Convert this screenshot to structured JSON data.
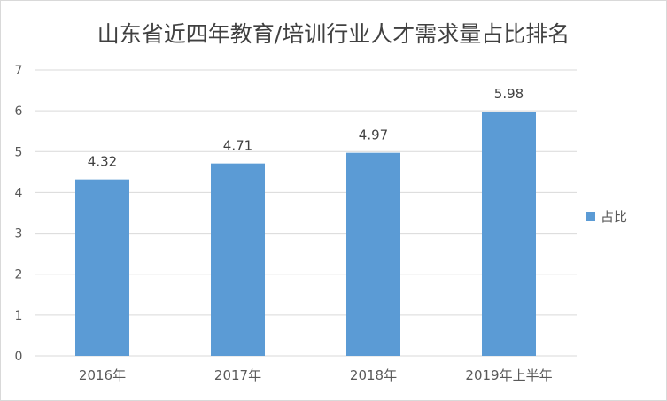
{
  "chart_data": {
    "type": "bar",
    "title": "山东省近四年教育/培训行业人才需求量占比排名",
    "categories": [
      "2016年",
      "2017年",
      "2018年",
      "2019年上半年"
    ],
    "series": [
      {
        "name": "占比",
        "values": [
          4.32,
          4.71,
          4.97,
          5.98
        ]
      }
    ],
    "data_labels": [
      "4.32",
      "4.71",
      "4.97",
      "5.98"
    ],
    "y_ticks": [
      "0",
      "1",
      "2",
      "3",
      "4",
      "5",
      "6",
      "7"
    ],
    "ylim": [
      0,
      7
    ],
    "grid": true,
    "legend_position": "right",
    "colors": {
      "bar": "#5b9bd5",
      "grid": "#d9d9d9",
      "text": "#595959"
    }
  }
}
